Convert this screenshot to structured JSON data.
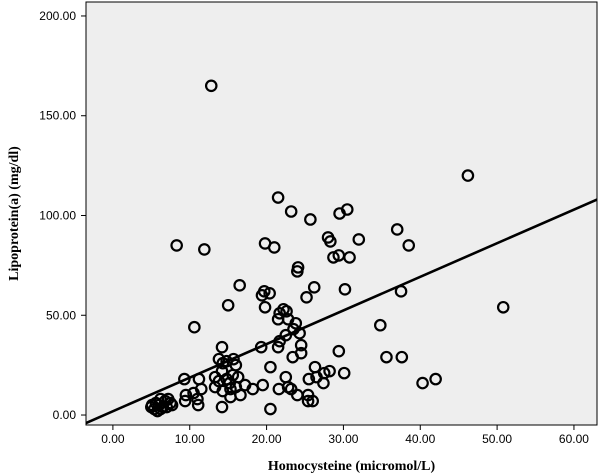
{
  "chart_data": {
    "type": "scatter",
    "title": "",
    "xlabel": "Homocysteine (micromol/L)",
    "ylabel": "Lipoprotein(a) (mg/dl)",
    "xlim": [
      -3.5,
      63
    ],
    "ylim": [
      -5,
      207
    ],
    "x_ticks": [
      0,
      10,
      20,
      30,
      40,
      50,
      60
    ],
    "x_tick_labels": [
      "0.00",
      "10.00",
      "20.00",
      "30.00",
      "40.00",
      "50.00",
      "60.00"
    ],
    "y_ticks": [
      0,
      50,
      100,
      150,
      200
    ],
    "y_tick_labels": [
      "0.00",
      "50.00",
      "100.00",
      "150.00",
      "200.00"
    ],
    "grid": false,
    "background": "#eeeeee",
    "marker_color": "#000000",
    "marker": "open-circle",
    "fit_line": {
      "type": "linear",
      "x": [
        -3.5,
        63
      ],
      "y": [
        -4,
        108
      ]
    },
    "points": [
      [
        12.8,
        165
      ],
      [
        46.2,
        120
      ],
      [
        21.5,
        109
      ],
      [
        23.2,
        102
      ],
      [
        30.5,
        103
      ],
      [
        29.5,
        101
      ],
      [
        25.7,
        98
      ],
      [
        37,
        93
      ],
      [
        32,
        88
      ],
      [
        28,
        89
      ],
      [
        28.3,
        87
      ],
      [
        38.5,
        85
      ],
      [
        8.3,
        85
      ],
      [
        11.9,
        83
      ],
      [
        19.8,
        86
      ],
      [
        21,
        84
      ],
      [
        28.7,
        79
      ],
      [
        29.4,
        80
      ],
      [
        30.8,
        79
      ],
      [
        24.1,
        74
      ],
      [
        24,
        72
      ],
      [
        16.5,
        65
      ],
      [
        26.2,
        64
      ],
      [
        30.2,
        63
      ],
      [
        37.5,
        62
      ],
      [
        19.7,
        62
      ],
      [
        20.4,
        61
      ],
      [
        19.4,
        60
      ],
      [
        25.2,
        59
      ],
      [
        19.8,
        54
      ],
      [
        15,
        55
      ],
      [
        50.8,
        54
      ],
      [
        22.2,
        53
      ],
      [
        21.7,
        51
      ],
      [
        22.6,
        52
      ],
      [
        21.5,
        48
      ],
      [
        22.8,
        48
      ],
      [
        23.8,
        46
      ],
      [
        34.8,
        45
      ],
      [
        10.6,
        44
      ],
      [
        23.5,
        43
      ],
      [
        24.3,
        41
      ],
      [
        22.5,
        40
      ],
      [
        21.7,
        37
      ],
      [
        24.5,
        35
      ],
      [
        19.3,
        34
      ],
      [
        21.5,
        34
      ],
      [
        14.2,
        34
      ],
      [
        29.4,
        32
      ],
      [
        24.5,
        31
      ],
      [
        23.4,
        29
      ],
      [
        35.6,
        29
      ],
      [
        37.6,
        29
      ],
      [
        13.8,
        28
      ],
      [
        15.7,
        28
      ],
      [
        14.8,
        27
      ],
      [
        14.3,
        26
      ],
      [
        16,
        25
      ],
      [
        20.5,
        24
      ],
      [
        26.3,
        24
      ],
      [
        28.2,
        22
      ],
      [
        27.5,
        21
      ],
      [
        30.1,
        21
      ],
      [
        14.2,
        22
      ],
      [
        15.6,
        20
      ],
      [
        13.3,
        19
      ],
      [
        16.3,
        19
      ],
      [
        22.5,
        19
      ],
      [
        25.5,
        18
      ],
      [
        26.5,
        19
      ],
      [
        42,
        18
      ],
      [
        40.3,
        16
      ],
      [
        9.3,
        18
      ],
      [
        11.2,
        18
      ],
      [
        14.8,
        18
      ],
      [
        13.8,
        17
      ],
      [
        15.2,
        16
      ],
      [
        17.2,
        15
      ],
      [
        16,
        14
      ],
      [
        15.3,
        13
      ],
      [
        18.2,
        13
      ],
      [
        19.5,
        15
      ],
      [
        21.6,
        13
      ],
      [
        22.8,
        14
      ],
      [
        23.2,
        13
      ],
      [
        13.3,
        14
      ],
      [
        14.3,
        12
      ],
      [
        11.5,
        13
      ],
      [
        10.5,
        11
      ],
      [
        9.5,
        10
      ],
      [
        16.6,
        10
      ],
      [
        15.3,
        9
      ],
      [
        24,
        10
      ],
      [
        25.4,
        7
      ],
      [
        26,
        7
      ],
      [
        25.4,
        10
      ],
      [
        27.4,
        16
      ],
      [
        11,
        8
      ],
      [
        9.4,
        7
      ],
      [
        11.1,
        5
      ],
      [
        14.2,
        4
      ],
      [
        20.5,
        3
      ],
      [
        7.2,
        8
      ],
      [
        7.5,
        6
      ],
      [
        6.8,
        7
      ],
      [
        6.2,
        8
      ],
      [
        5.6,
        6
      ],
      [
        5.1,
        5
      ],
      [
        5.4,
        3
      ],
      [
        6,
        5
      ],
      [
        7,
        4
      ],
      [
        5.8,
        2
      ],
      [
        6.5,
        4
      ],
      [
        6.2,
        3
      ],
      [
        5,
        4
      ],
      [
        7.7,
        5
      ]
    ]
  }
}
